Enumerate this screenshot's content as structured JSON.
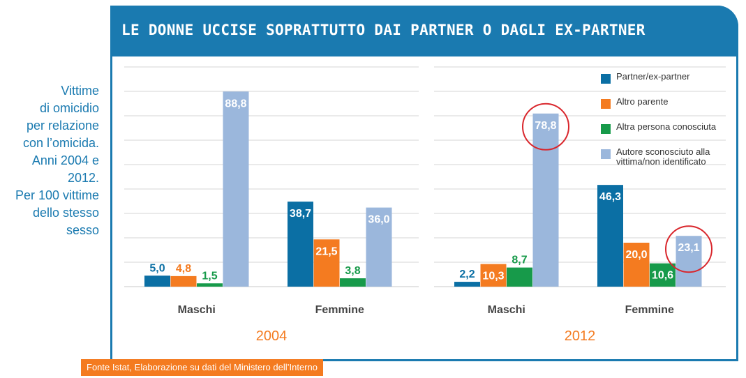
{
  "header": {
    "title": "LE DONNE UCCISE SOPRATTUTTO DAI PARTNER O DAGLI EX-PARTNER"
  },
  "side_label": {
    "lines": [
      "Vittime",
      "di omicidio",
      "per relazione",
      "con l’omicida.",
      "Anni 2004 e",
      "2012.",
      "Per 100 vittime",
      "dello stesso",
      "sesso"
    ]
  },
  "source": "Fonte Istat, Elaborazione su dati del  Ministero dell’Interno",
  "colors": {
    "partner": "#0b6fa4",
    "altro_parente": "#f47b20",
    "conosciuta": "#179a4a",
    "sconosciuto": "#9bb7dc",
    "accent": "#1a7ab0",
    "year": "#f47b20",
    "highlight": "#d9262c"
  },
  "chart_data": {
    "type": "bar",
    "ylim": [
      0,
      100
    ],
    "grid": true,
    "legend_placement": "top-right",
    "series_names": [
      "Partner/ex-partner",
      "Altro parente",
      "Altra persona conosciuta",
      "Autore sconosciuto alla vittima/non identificato"
    ],
    "panels": [
      {
        "year": "2004",
        "categories": [
          "Maschi",
          "Femmine"
        ],
        "values": [
          [
            5.0,
            4.8,
            1.5,
            88.8
          ],
          [
            38.7,
            21.5,
            3.8,
            36.0
          ]
        ],
        "labels": [
          [
            "5,0",
            "4,8",
            "1,5",
            "88,8"
          ],
          [
            "38,7",
            "21,5",
            "3,8",
            "36,0"
          ]
        ],
        "highlighted": []
      },
      {
        "year": "2012",
        "categories": [
          "Maschi",
          "Femmine"
        ],
        "values": [
          [
            2.2,
            10.3,
            8.7,
            78.8
          ],
          [
            46.3,
            20.0,
            10.6,
            23.1
          ]
        ],
        "labels": [
          [
            "2,2",
            "10,3",
            "8,7",
            "78,8"
          ],
          [
            "46,3",
            "20,0",
            "10,6",
            "23,1"
          ]
        ],
        "highlighted": [
          [
            0,
            3
          ],
          [
            1,
            3
          ]
        ]
      }
    ]
  }
}
